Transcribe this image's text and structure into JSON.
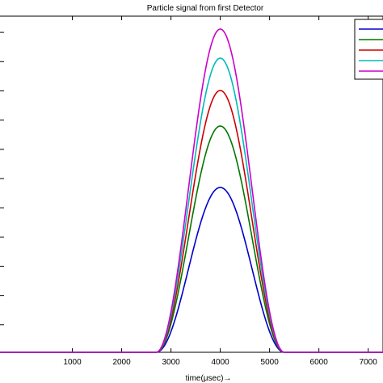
{
  "chart_data": {
    "type": "line",
    "title": "Particle signal from first Detector",
    "xlabel": "time(μsec)→",
    "ylabel": "",
    "xlim": [
      -500,
      7300
    ],
    "ylim": [
      0,
      1.04
    ],
    "x_ticks": [
      1000,
      2000,
      3000,
      4000,
      5000,
      6000,
      7000
    ],
    "y_tick_count": 12,
    "grid": false,
    "legend": {
      "placement": "top-right",
      "entries_visible_text": false
    },
    "pulse": {
      "center": 4000,
      "start": 2700,
      "end": 5300
    },
    "series": [
      {
        "color": "#0000cc",
        "peak": 0.51
      },
      {
        "color": "#007700",
        "peak": 0.7
      },
      {
        "color": "#cc0000",
        "peak": 0.81
      },
      {
        "color": "#00bbbb",
        "peak": 0.91
      },
      {
        "color": "#cc00cc",
        "peak": 1.0
      }
    ]
  }
}
